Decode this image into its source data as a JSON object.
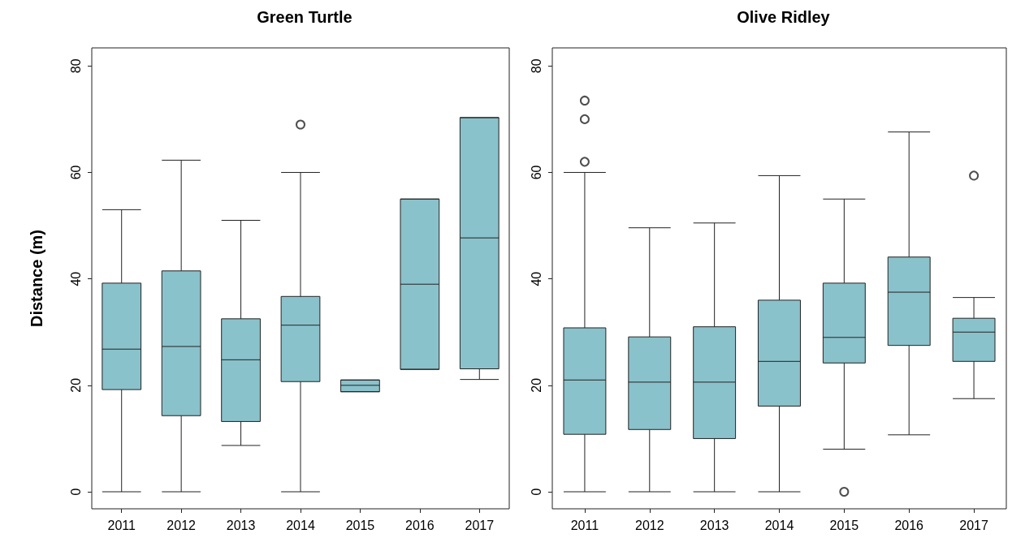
{
  "chart_data": [
    {
      "type": "box",
      "title": "Green Turtle",
      "ylabel": "Distance (m)",
      "categories": [
        "2011",
        "2012",
        "2013",
        "2014",
        "2015",
        "2016",
        "2017"
      ],
      "ylim": [
        -3.2,
        83.4
      ],
      "yticks": [
        0,
        20,
        40,
        60,
        80
      ],
      "grid": false,
      "series": [
        {
          "color": "#8ac2cb",
          "boxes": [
            {
              "low": 0,
              "q1": 19.2,
              "median": 26.8,
              "q3": 39.2,
              "high": 53
            },
            {
              "low": 0,
              "q1": 14.3,
              "median": 27.3,
              "q3": 41.5,
              "high": 62.3
            },
            {
              "low": 8.7,
              "q1": 13.2,
              "median": 24.8,
              "q3": 32.5,
              "high": 51
            },
            {
              "low": 0,
              "q1": 20.7,
              "median": 31.3,
              "q3": 36.7,
              "high": 60,
              "outliers": [
                69
              ]
            },
            {
              "low": 18.8,
              "q1": 18.8,
              "median": 20,
              "q3": 21,
              "high": 21
            },
            {
              "low": 23,
              "q1": 23,
              "median": 39,
              "q3": 55,
              "high": 55
            },
            {
              "low": 21.1,
              "q1": 23.1,
              "median": 47.7,
              "q3": 70.3,
              "high": 70.3
            }
          ]
        }
      ]
    },
    {
      "type": "box",
      "title": "Olive Ridley",
      "categories": [
        "2011",
        "2012",
        "2013",
        "2014",
        "2015",
        "2016",
        "2017"
      ],
      "ylim": [
        -3.2,
        83.4
      ],
      "yticks": [
        0,
        20,
        40,
        60,
        80
      ],
      "grid": false,
      "series": [
        {
          "color": "#8ac2cb",
          "boxes": [
            {
              "low": 0,
              "q1": 10.8,
              "median": 21,
              "q3": 30.8,
              "high": 60,
              "outliers": [
                62,
                70,
                73.5
              ]
            },
            {
              "low": 0,
              "q1": 11.7,
              "median": 20.6,
              "q3": 29.1,
              "high": 49.6
            },
            {
              "low": 0,
              "q1": 10,
              "median": 20.6,
              "q3": 31,
              "high": 50.5
            },
            {
              "low": 0,
              "q1": 16.1,
              "median": 24.5,
              "q3": 36,
              "high": 59.4
            },
            {
              "low": 8,
              "q1": 24.2,
              "median": 29,
              "q3": 39.2,
              "high": 55,
              "outliers": [
                0
              ]
            },
            {
              "low": 10.7,
              "q1": 27.5,
              "median": 37.5,
              "q3": 44.1,
              "high": 67.6
            },
            {
              "low": 17.5,
              "q1": 24.5,
              "median": 30,
              "q3": 32.6,
              "high": 36.5,
              "outliers": [
                59.4
              ]
            }
          ]
        }
      ]
    }
  ]
}
